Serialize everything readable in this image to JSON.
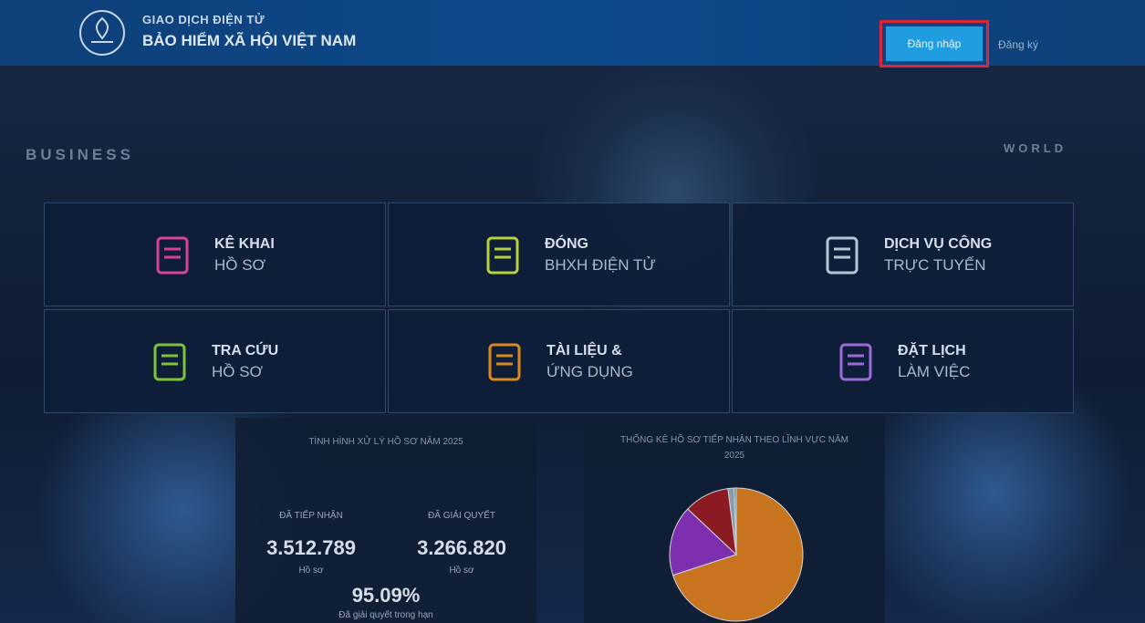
{
  "header": {
    "line1": "GIAO DỊCH ĐIỆN TỬ",
    "line2": "BẢO HIỂM XÃ HỘI VIỆT NAM"
  },
  "nav": {
    "login": "Đăng nhập",
    "register": "Đăng ký"
  },
  "background": {
    "left": "BUSINESS",
    "right": "WORLD"
  },
  "tiles": [
    {
      "line1": "KÊ KHAI",
      "line2": "HỒ SƠ"
    },
    {
      "line1": "ĐÓNG",
      "line2": "BHXH ĐIỆN TỬ"
    },
    {
      "line1": "DỊCH VỤ CÔNG",
      "line2": "TRỰC TUYẾN"
    },
    {
      "line1": "TRA CỨU",
      "line2": "HỒ SƠ"
    },
    {
      "line1": "TÀI LIỆU &",
      "line2": "ỨNG DỤNG"
    },
    {
      "line1": "ĐẶT LỊCH",
      "line2": "LÀM VIỆC"
    }
  ],
  "stats": {
    "title": "TÌNH HÌNH XỬ LÝ HỒ SƠ NĂM 2025",
    "received": {
      "label": "ĐÃ TIẾP NHẬN",
      "value": "3.512.789",
      "unit": "Hồ sơ"
    },
    "resolved": {
      "label": "ĐÃ GIẢI QUYẾT",
      "value": "3.266.820",
      "unit": "Hồ sơ"
    },
    "rate": {
      "value": "95.09%",
      "label": "Đã giải quyết trong hạn"
    }
  },
  "chart_data": {
    "type": "pie",
    "title": "THỐNG KÊ HỒ SƠ TIẾP NHẬN THEO LĨNH VỰC NĂM 2025",
    "values": [
      70,
      17,
      11,
      1.5,
      0.5
    ],
    "colors": [
      "#c8741e",
      "#7d2fb0",
      "#8b1a22",
      "#8a9aa8",
      "#3e8a8e"
    ]
  }
}
